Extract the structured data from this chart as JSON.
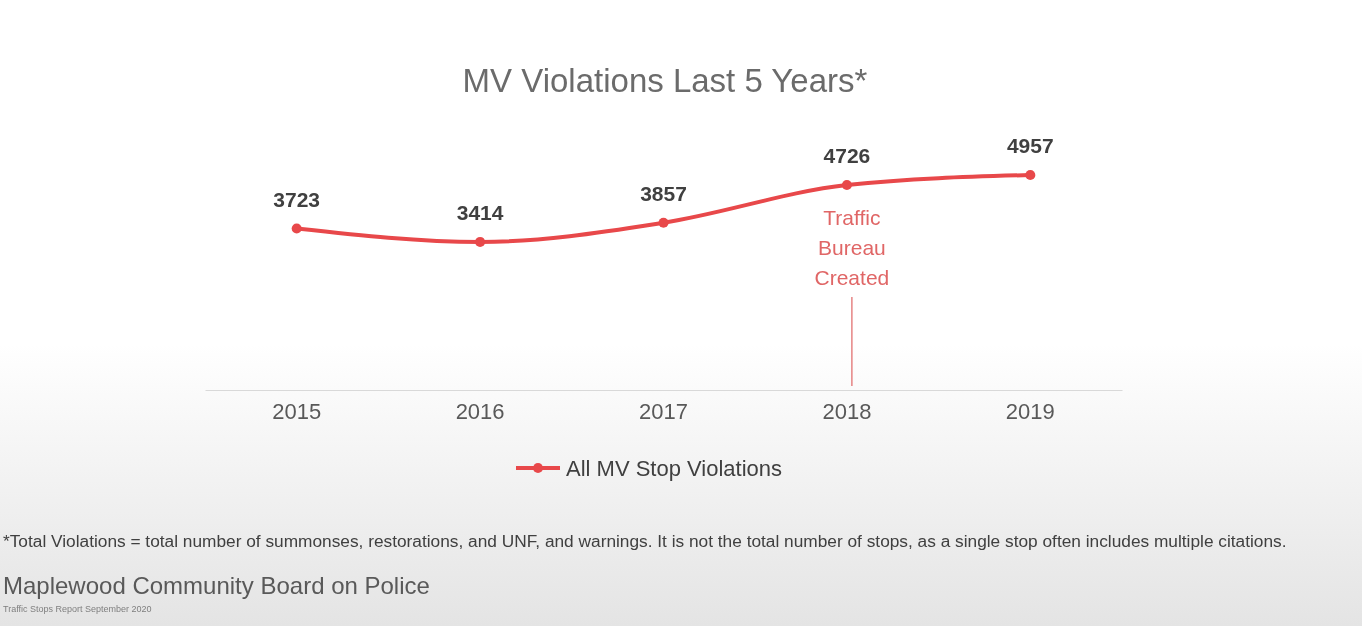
{
  "chart_data": {
    "type": "line",
    "title": "MV Violations Last 5 Years*",
    "categories": [
      "2015",
      "2016",
      "2017",
      "2018",
      "2019"
    ],
    "series": [
      {
        "name": "All MV Stop Violations",
        "color": "#e8484a",
        "values": [
          3723,
          3414,
          3857,
          4726,
          4957
        ]
      }
    ],
    "data_labels": true,
    "marker": "circle",
    "legend": "bottom",
    "grid": false,
    "ref_lines": [
      {
        "axis": "x",
        "value": "2018",
        "label": "Traffic Bureau Created",
        "color": "#e06666"
      }
    ],
    "annotations": [
      "*Total Violations = total number of summonses, restorations, and UNF, and warnings. It is not the total number of stops, as a single stop often includes multiple citations.",
      "Maplewood Community Board on Police",
      "Traffic Stops Report September 2020"
    ]
  }
}
